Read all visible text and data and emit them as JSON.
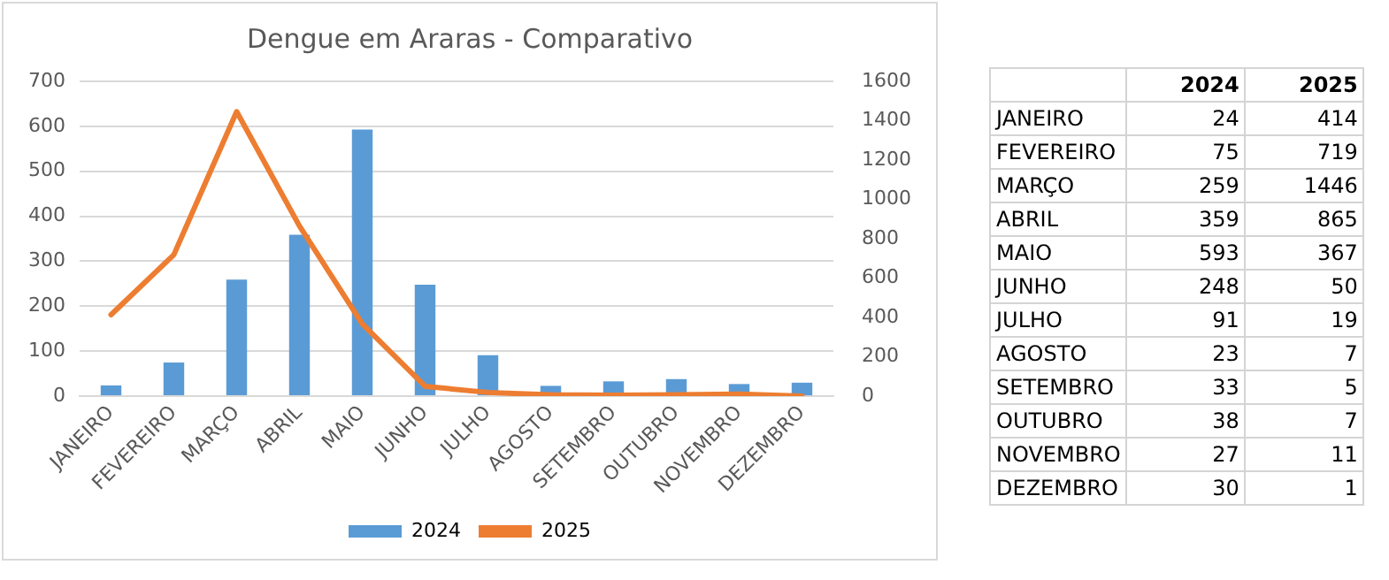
{
  "chart_data": [
    {
      "type": "bar",
      "title": "Dengue em Araras - Comparativo",
      "categories": [
        "JANEIRO",
        "FEVEREIRO",
        "MARÇO",
        "ABRIL",
        "MAIO",
        "JUNHO",
        "JULHO",
        "AGOSTO",
        "SETEMBRO",
        "OUTUBRO",
        "NOVEMBRO",
        "DEZEMBRO"
      ],
      "series": [
        {
          "name": "2024",
          "color": "#5b9bd5",
          "values": [
            24,
            75,
            259,
            359,
            593,
            248,
            91,
            23,
            33,
            38,
            27,
            30
          ]
        },
        {
          "name": "2025",
          "type": "line",
          "axis": "y2",
          "color": "#ed7d31",
          "values": [
            414,
            719,
            1446,
            865,
            367,
            50,
            19,
            7,
            5,
            7,
            11,
            1
          ]
        }
      ],
      "ylim": [
        0,
        700
      ],
      "yticks": [
        0,
        100,
        200,
        300,
        400,
        500,
        600,
        700
      ],
      "y2lim": [
        0,
        1600
      ],
      "y2ticks": [
        0,
        200,
        400,
        600,
        800,
        1000,
        1200,
        1400,
        1600
      ],
      "grid": "y",
      "legend": "bottom",
      "marker": "none"
    },
    {
      "type": "other",
      "categories": [
        "JANEIRO",
        "FEVEREIRO",
        "MARÇO",
        "ABRIL",
        "MAIO",
        "JUNHO",
        "JULHO",
        "AGOSTO",
        "SETEMBRO",
        "OUTUBRO",
        "NOVEMBRO",
        "DEZEMBRO"
      ],
      "series": [
        {
          "name": "2024",
          "values": [
            24,
            75,
            259,
            359,
            593,
            248,
            91,
            23,
            33,
            38,
            27,
            30
          ]
        },
        {
          "name": "2025",
          "values": [
            414,
            719,
            1446,
            865,
            367,
            50,
            19,
            7,
            5,
            7,
            11,
            1
          ]
        }
      ],
      "data_labels": true
    }
  ]
}
